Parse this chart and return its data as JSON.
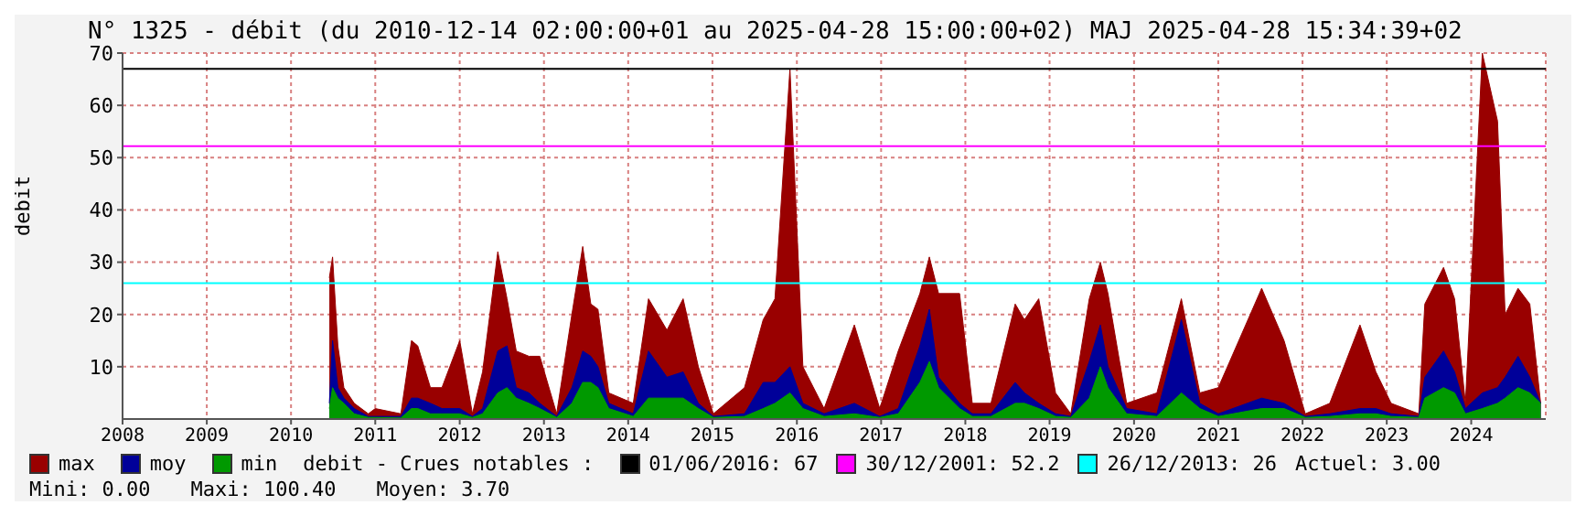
{
  "chart_data": {
    "type": "area",
    "title": "N° 1325 - débit (du 2010-12-14 02:00:00+01 au 2025-04-28 15:00:00+02) MAJ 2025-04-28 15:34:39+02",
    "ylabel": "debit",
    "x": [
      "2010-12-14",
      "2010-12-28",
      "2011-01-20",
      "2011-02-15",
      "2011-04-01",
      "2011-06-01",
      "2011-07-01",
      "2011-10-20",
      "2011-12-05",
      "2012-01-01",
      "2012-02-25",
      "2012-04-15",
      "2012-07-01",
      "2012-08-25",
      "2012-10-08",
      "2012-12-13",
      "2013-01-22",
      "2013-03-03",
      "2013-04-27",
      "2013-06-13",
      "2013-08-25",
      "2013-10-30",
      "2013-12-16",
      "2014-01-20",
      "2014-02-20",
      "2014-04-08",
      "2014-07-23",
      "2014-09-27",
      "2014-12-16",
      "2015-02-24",
      "2015-05-01",
      "2015-07-05",
      "2015-11-17",
      "2016-02-06",
      "2016-03-28",
      "2016-06-01",
      "2016-07-27",
      "2016-10-27",
      "2017-03-07",
      "2017-06-25",
      "2017-09-13",
      "2017-12-16",
      "2018-01-26",
      "2018-03-07",
      "2018-06-06",
      "2018-07-31",
      "2018-10-20",
      "2019-02-02",
      "2019-03-14",
      "2019-05-15",
      "2019-07-27",
      "2019-10-01",
      "2019-12-20",
      "2020-02-06",
      "2020-03-10",
      "2020-05-30",
      "2020-10-08",
      "2021-01-22",
      "2021-04-12",
      "2021-07-01",
      "2022-01-05",
      "2022-04-12",
      "2022-07-13",
      "2022-10-27",
      "2023-03-07",
      "2023-05-15",
      "2023-07-20",
      "2023-11-17",
      "2023-12-13",
      "2024-03-03",
      "2024-04-20",
      "2024-06-06",
      "2024-08-18",
      "2024-10-23",
      "2024-11-25",
      "2025-01-20",
      "2025-03-12",
      "2025-04-28"
    ],
    "series": [
      {
        "name": "max",
        "color": "#990000",
        "values": [
          27,
          31,
          14,
          6,
          3,
          1,
          2,
          1,
          15,
          14,
          6,
          6,
          15,
          1,
          9,
          32,
          23,
          13,
          12,
          12,
          1,
          20,
          33,
          22,
          21,
          5,
          3,
          23,
          17,
          23,
          10,
          1,
          6,
          19,
          23,
          67,
          10,
          2,
          18,
          2,
          13,
          24,
          31,
          24,
          24,
          3,
          3,
          22,
          19,
          23,
          5,
          1,
          23,
          30,
          24,
          3,
          5,
          23,
          5,
          6,
          25,
          15,
          1,
          3,
          18,
          9,
          3,
          1,
          22,
          29,
          23,
          3,
          70,
          57,
          20,
          25,
          22,
          3
        ]
      },
      {
        "name": "moy",
        "color": "#000099",
        "values": [
          3,
          15,
          6,
          4,
          2,
          0.5,
          0.5,
          0.5,
          4,
          4,
          3,
          2,
          2,
          0.5,
          2,
          13,
          14,
          6,
          5,
          3,
          0.5,
          6,
          13,
          12,
          10,
          3,
          1,
          13,
          8,
          9,
          3,
          0.5,
          1,
          7,
          7,
          10,
          3,
          1,
          3,
          0.5,
          2,
          14,
          21,
          8,
          3,
          1,
          1,
          7,
          5,
          3,
          1,
          0.5,
          11,
          18,
          10,
          2,
          1,
          19,
          3,
          1,
          4,
          3,
          0.5,
          1,
          2,
          2,
          1,
          0.5,
          8,
          13,
          9,
          2,
          5,
          6,
          8,
          12,
          8,
          3
        ]
      },
      {
        "name": "min",
        "color": "#009900",
        "values": [
          2,
          6,
          4,
          3,
          1,
          0.3,
          0.3,
          0.2,
          2,
          2,
          1,
          1,
          1,
          0.3,
          1,
          5,
          6,
          4,
          3,
          2,
          0.3,
          3,
          7,
          7,
          6,
          2,
          0.5,
          4,
          4,
          4,
          2,
          0.3,
          0.5,
          2,
          3,
          5,
          2,
          0.5,
          1,
          0.3,
          1,
          7,
          11,
          6,
          2,
          0.5,
          0.5,
          3,
          3,
          2,
          0.5,
          0.3,
          4,
          10,
          6,
          1,
          0.5,
          5,
          2,
          0.5,
          2,
          2,
          0.3,
          0.5,
          1,
          1,
          0.5,
          0.3,
          4,
          6,
          5,
          1,
          2,
          3,
          4,
          6,
          5,
          3
        ]
      }
    ],
    "xlim": [
      "2008-07-01",
      "2025-05-20"
    ],
    "xticks": [
      {
        "value": "2008-07-01",
        "label": "2008"
      },
      {
        "value": "2009-07-01",
        "label": "2009"
      },
      {
        "value": "2010-07-01",
        "label": "2010"
      },
      {
        "value": "2011-07-01",
        "label": "2011"
      },
      {
        "value": "2012-07-01",
        "label": "2012"
      },
      {
        "value": "2013-07-01",
        "label": "2013"
      },
      {
        "value": "2014-07-01",
        "label": "2014"
      },
      {
        "value": "2015-07-01",
        "label": "2015"
      },
      {
        "value": "2016-07-01",
        "label": "2016"
      },
      {
        "value": "2017-07-01",
        "label": "2017"
      },
      {
        "value": "2018-07-01",
        "label": "2018"
      },
      {
        "value": "2019-07-01",
        "label": "2019"
      },
      {
        "value": "2020-07-01",
        "label": "2020"
      },
      {
        "value": "2021-07-01",
        "label": "2021"
      },
      {
        "value": "2022-07-01",
        "label": "2022"
      },
      {
        "value": "2023-07-01",
        "label": "2023"
      },
      {
        "value": "2024-07-01",
        "label": "2024"
      }
    ],
    "ylim": [
      0,
      70
    ],
    "yticks": [
      10,
      20,
      30,
      40,
      50,
      60,
      70
    ],
    "ref_lines": [
      {
        "axis": "y",
        "value": 67,
        "label": "01/06/2016: 67",
        "color": "#000000"
      },
      {
        "axis": "y",
        "value": 52.2,
        "label": "30/12/2001: 52.2",
        "color": "#ff00ff"
      },
      {
        "axis": "y",
        "value": 26,
        "label": "26/12/2013: 26",
        "color": "#00ffff"
      }
    ],
    "annotations": [
      "debit - Crues notables :",
      "Actuel: 3.00",
      "Mini: 0.00",
      "Maxi: 100.40",
      "Moyen: 3.70"
    ],
    "grid": true,
    "legend": "bottom"
  }
}
